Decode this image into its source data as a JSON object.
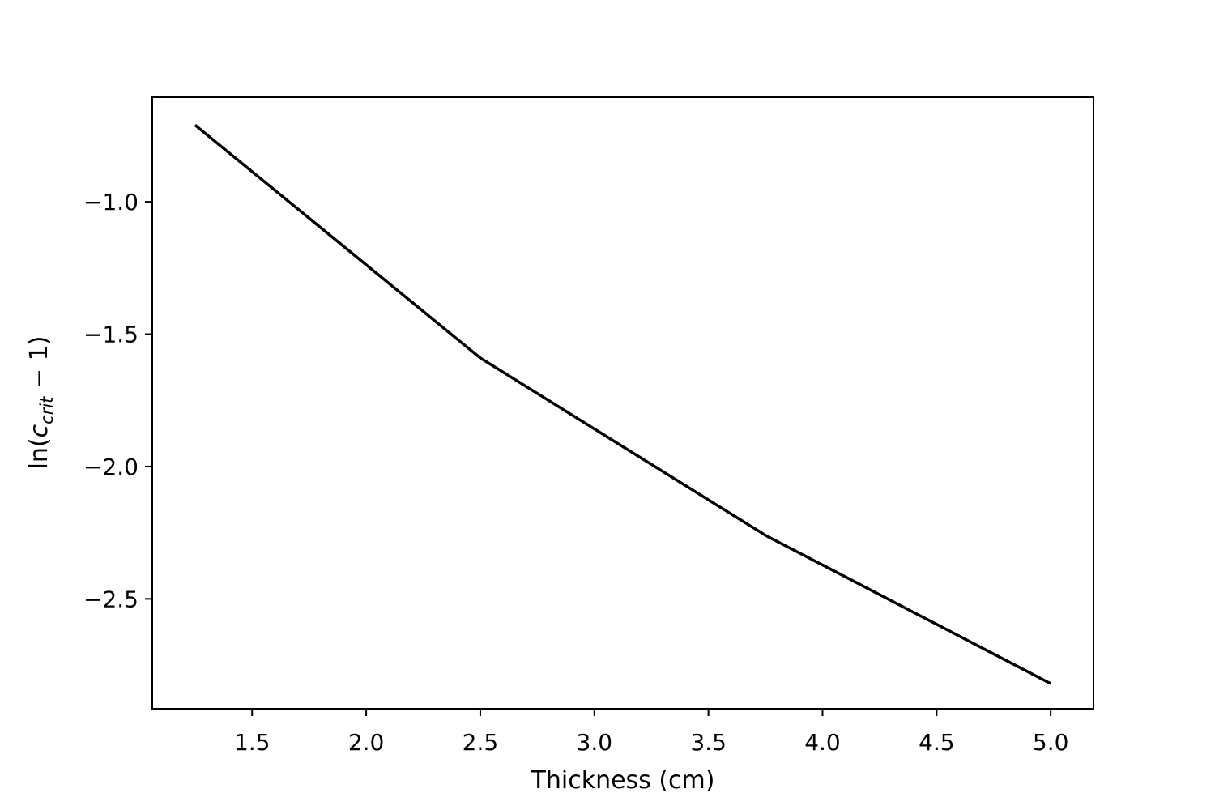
{
  "chart_data": {
    "type": "line",
    "title": "",
    "xlabel": "Thickness (cm)",
    "ylabel": "ln(c_crit − 1)",
    "ylabel_parts": {
      "prefix": "ln(",
      "var": "c",
      "sub": "crit",
      "suffix": " − 1)"
    },
    "xlim": [
      1.0625,
      5.1875
    ],
    "ylim": [
      -2.915,
      -0.605
    ],
    "x_ticks": [
      1.5,
      2.0,
      2.5,
      3.0,
      3.5,
      4.0,
      4.5,
      5.0
    ],
    "x_tick_labels": [
      "1.5",
      "2.0",
      "2.5",
      "3.0",
      "3.5",
      "4.0",
      "4.5",
      "5.0"
    ],
    "y_ticks": [
      -1.0,
      -1.5,
      -2.0,
      -2.5
    ],
    "y_tick_labels": [
      "−1.0",
      "−1.5",
      "−2.0",
      "−2.5"
    ],
    "grid": false,
    "series": [
      {
        "color": "#000000",
        "x": [
          1.25,
          2.5,
          3.75,
          5.0
        ],
        "y": [
          -0.71,
          -1.59,
          -2.26,
          -2.82
        ]
      }
    ]
  }
}
